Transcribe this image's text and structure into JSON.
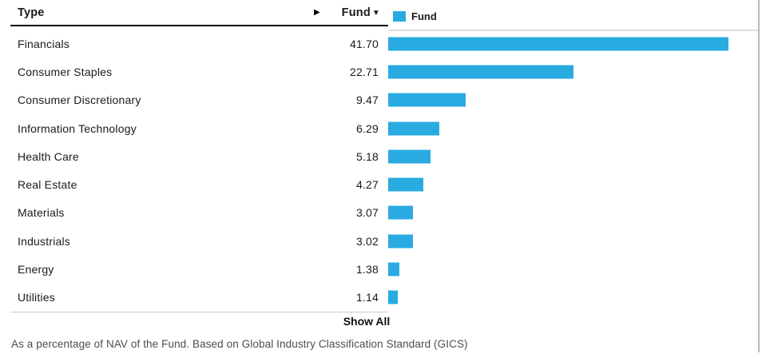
{
  "header": {
    "type_label": "Type",
    "fund_label": "Fund",
    "sort_icon": "▼",
    "carousel_icon": "▶"
  },
  "legend": {
    "label": "Fund"
  },
  "chart_data": {
    "type": "bar",
    "orientation": "horizontal",
    "title": "",
    "series_name": "Fund",
    "categories": [
      "Financials",
      "Consumer Staples",
      "Consumer Discretionary",
      "Information Technology",
      "Health Care",
      "Real Estate",
      "Materials",
      "Industrials",
      "Energy",
      "Utilities"
    ],
    "values": [
      41.7,
      22.71,
      9.47,
      6.29,
      5.18,
      4.27,
      3.07,
      3.02,
      1.38,
      1.14
    ],
    "value_labels": [
      "41.70",
      "22.71",
      "9.47",
      "6.29",
      "5.18",
      "4.27",
      "3.07",
      "3.02",
      "1.38",
      "1.14"
    ],
    "xlim": [
      0,
      45
    ],
    "grid": false,
    "legend_position": "top-left-of-plot",
    "bar_color": "#29ABE2"
  },
  "footer": {
    "show_all": "Show All",
    "note": "As a percentage of NAV of the Fund. Based on Global Industry Classification Standard (GICS)"
  },
  "colors": {
    "bar": "#29ABE2",
    "header_rule": "#000000",
    "divider": "#cccccc",
    "text": "#1a1a1a",
    "note_text": "#4d4d4d"
  }
}
